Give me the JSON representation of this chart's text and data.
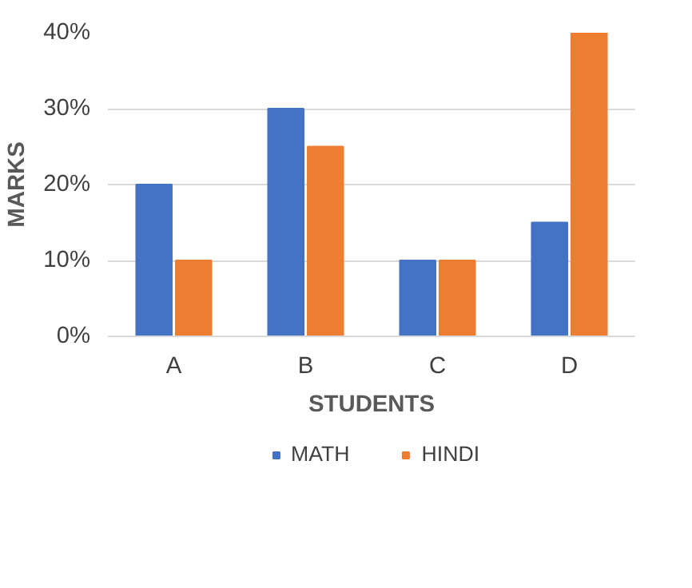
{
  "chart_data": {
    "type": "bar",
    "xlabel": "STUDENTS",
    "ylabel": "MARKS",
    "categories": [
      "A",
      "B",
      "C",
      "D"
    ],
    "series": [
      {
        "name": "MATH",
        "color": "#4472c4",
        "values": [
          20,
          30,
          10,
          15
        ]
      },
      {
        "name": "HINDI",
        "color": "#ed7d31",
        "values": [
          10,
          25,
          10,
          40
        ]
      }
    ],
    "ylim": [
      0,
      40
    ],
    "yticks": [
      {
        "value": 0,
        "label": "0%"
      },
      {
        "value": 10,
        "label": "10%"
      },
      {
        "value": 20,
        "label": "20%"
      },
      {
        "value": 30,
        "label": "30%"
      },
      {
        "value": 40,
        "label": "40%"
      }
    ],
    "grid": "y",
    "legend": "bottom"
  }
}
